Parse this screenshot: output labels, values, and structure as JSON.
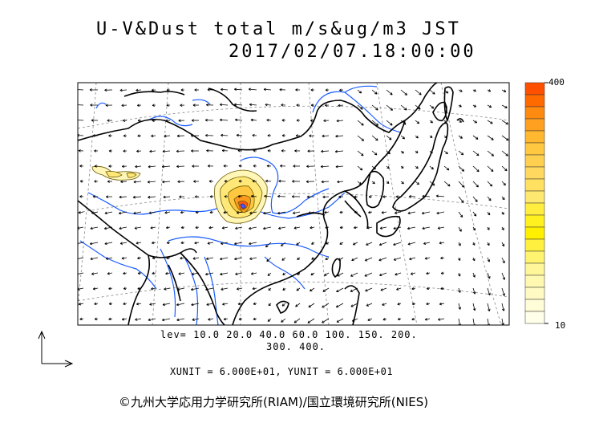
{
  "title": "U-V&Dust total m/s&ug/m3 JST",
  "datetime": "2017/02/07.18:00:00",
  "levels_line1": "lev= 10.0 20.0 40.0 60.0 100. 150. 200.",
  "levels_line2": "300. 400.",
  "units_line": "XUNIT = 6.000E+01, YUNIT = 6.000E+01",
  "credit": "©九州大学応用力学研究所(RIAM)/国立環境研究所(NIES)",
  "colorbar": {
    "max_label": "400",
    "min_label": "10",
    "colors": [
      "#ff5000",
      "#ff6a00",
      "#ff8a10",
      "#ffa020",
      "#ffb830",
      "#ffc840",
      "#ffd050",
      "#ffd860",
      "#ffe060",
      "#ffe870",
      "#ffee40",
      "#fff020",
      "#fff000",
      "#fff040",
      "#fff470",
      "#fff69a",
      "#fff8b0",
      "#fffac4",
      "#fffcd8",
      "#fffee8"
    ]
  }
}
